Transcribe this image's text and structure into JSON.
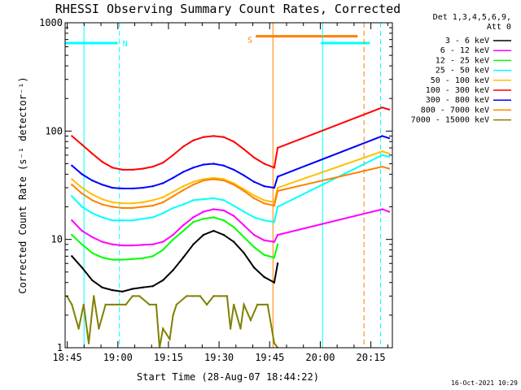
{
  "chart_data": {
    "type": "line",
    "title": "RHESSI Observing Summary Count Rates, Corrected",
    "xlabel": "Start Time (28-Aug-07 18:44:22)",
    "ylabel": "Corrected Count Rate (s⁻¹ detector⁻¹)",
    "x_units": "minutes after 18:44:22",
    "xlim": [
      0,
      97
    ],
    "ylim": [
      1,
      1000
    ],
    "yscale": "log",
    "grid": false,
    "legend_position": "right",
    "x_ticks": [
      {
        "label": "18:45",
        "value": 0.63
      },
      {
        "label": "19:00",
        "value": 15.63
      },
      {
        "label": "19:15",
        "value": 30.63
      },
      {
        "label": "19:30",
        "value": 45.63
      },
      {
        "label": "19:45",
        "value": 60.63
      },
      {
        "label": "20:00",
        "value": 75.63
      },
      {
        "label": "20:15",
        "value": 90.63
      }
    ],
    "y_ticks": [
      {
        "label": "1",
        "value": 1
      },
      {
        "label": "10",
        "value": 10
      },
      {
        "label": "100",
        "value": 100
      },
      {
        "label": "1000",
        "value": 1000
      }
    ],
    "legend_header": [
      "Det 1,3,4,5,6,9,",
      "Att 0"
    ],
    "series": [
      {
        "name": "3 - 6 keV",
        "color": "#000000",
        "x": [
          2,
          5,
          8,
          11,
          14,
          17,
          20,
          23,
          26,
          29,
          32,
          35,
          38,
          41,
          44,
          47,
          50,
          53,
          56,
          59,
          62,
          63
        ],
        "values": [
          7,
          5.5,
          4.2,
          3.6,
          3.4,
          3.3,
          3.5,
          3.6,
          3.7,
          4.2,
          5.2,
          6.8,
          9,
          11,
          12,
          11,
          9.5,
          7.5,
          5.5,
          4.5,
          4.0,
          6
        ]
      },
      {
        "name": "6 - 12 keV",
        "color": "#ff00ff",
        "x": [
          2,
          5,
          8,
          11,
          14,
          17,
          20,
          23,
          26,
          29,
          32,
          35,
          38,
          41,
          44,
          47,
          50,
          53,
          56,
          59,
          62,
          63,
          94,
          96
        ],
        "values": [
          15,
          12,
          10.5,
          9.5,
          9,
          8.8,
          8.8,
          8.9,
          9,
          9.5,
          11,
          13.5,
          16,
          18,
          19,
          18.5,
          16.5,
          13.5,
          11,
          9.8,
          9.5,
          11,
          19,
          18
        ]
      },
      {
        "name": "12 - 25 keV",
        "color": "#00ff00",
        "x": [
          2,
          5,
          8,
          11,
          14,
          17,
          20,
          23,
          26,
          29,
          32,
          35,
          38,
          41,
          44,
          47,
          50,
          53,
          56,
          59,
          62,
          63
        ],
        "values": [
          11,
          9,
          7.5,
          6.8,
          6.5,
          6.5,
          6.6,
          6.7,
          7,
          8,
          10,
          12,
          14.5,
          15.5,
          16,
          15,
          13,
          10.5,
          8.5,
          7.2,
          6.8,
          9
        ]
      },
      {
        "name": "25 - 50 keV",
        "color": "#00ffff",
        "x": [
          2,
          5,
          8,
          11,
          14,
          17,
          20,
          23,
          26,
          29,
          32,
          35,
          38,
          41,
          44,
          47,
          50,
          53,
          56,
          59,
          62,
          63,
          94,
          96
        ],
        "values": [
          25,
          20,
          17.5,
          16,
          15,
          15,
          15,
          15.5,
          16,
          17.5,
          19.5,
          21,
          23,
          23.5,
          24,
          23,
          20.5,
          18,
          16,
          15,
          14.5,
          20,
          60,
          58
        ]
      },
      {
        "name": "50 - 100 keV",
        "color": "#ffbf00",
        "x": [
          2,
          5,
          8,
          11,
          14,
          17,
          20,
          23,
          26,
          29,
          32,
          35,
          38,
          41,
          44,
          47,
          50,
          53,
          56,
          59,
          62,
          63,
          94,
          96
        ],
        "values": [
          36,
          30,
          26,
          23.5,
          22,
          21.5,
          21.5,
          22,
          23,
          24.5,
          27.5,
          31,
          34,
          36,
          37,
          36,
          33,
          29,
          25.5,
          23,
          22,
          30,
          65,
          62
        ]
      },
      {
        "name": "100 - 300 keV",
        "color": "#ff0000",
        "x": [
          2,
          5,
          8,
          11,
          14,
          17,
          20,
          23,
          26,
          29,
          32,
          35,
          38,
          41,
          44,
          47,
          50,
          53,
          56,
          59,
          62,
          63,
          94,
          96
        ],
        "values": [
          90,
          75,
          62,
          52,
          46,
          44,
          44,
          45,
          47,
          51,
          60,
          72,
          82,
          88,
          90,
          88,
          80,
          68,
          57,
          50,
          46,
          70,
          165,
          158
        ]
      },
      {
        "name": "300 - 800 keV",
        "color": "#0000ff",
        "x": [
          2,
          5,
          8,
          11,
          14,
          17,
          20,
          23,
          26,
          29,
          32,
          35,
          38,
          41,
          44,
          47,
          50,
          53,
          56,
          59,
          62,
          63,
          94,
          96
        ],
        "values": [
          48,
          40,
          35,
          32,
          30,
          29.5,
          29.5,
          30,
          31,
          33,
          37,
          42,
          46,
          49,
          50,
          48,
          44,
          39,
          34,
          31,
          30,
          38,
          90,
          86
        ]
      },
      {
        "name": "800 - 7000 keV",
        "color": "#ff8000",
        "x": [
          2,
          5,
          8,
          11,
          14,
          17,
          20,
          23,
          26,
          29,
          32,
          35,
          38,
          41,
          44,
          47,
          50,
          53,
          56,
          59,
          62,
          63,
          94,
          96
        ],
        "values": [
          32,
          26.5,
          23,
          21,
          20,
          19.5,
          19.5,
          20,
          20.5,
          22,
          25,
          28.5,
          32,
          35,
          36,
          35,
          32,
          28,
          24,
          21.5,
          20.5,
          28,
          47,
          45
        ]
      },
      {
        "name": "7000 - 15000 keV",
        "color": "#808000",
        "x": [
          0.5,
          2,
          4,
          5.5,
          7,
          8.5,
          10,
          12,
          14,
          16,
          18,
          20,
          22,
          25,
          27,
          28,
          29,
          31,
          32,
          33,
          36,
          38,
          40,
          42,
          44,
          46,
          48,
          49,
          50,
          52,
          53,
          55,
          57,
          60,
          62,
          63
        ],
        "values": [
          3,
          2.5,
          1.5,
          2.5,
          1.1,
          3,
          1.5,
          2.5,
          2.5,
          2.5,
          2.5,
          3,
          3,
          2.5,
          2.5,
          1,
          1.5,
          1.2,
          2,
          2.5,
          3,
          3,
          3,
          2.5,
          3,
          3,
          3,
          1.5,
          2.5,
          1.5,
          2.5,
          1.8,
          2.5,
          2.5,
          1.1,
          1
        ]
      }
    ],
    "annotations": {
      "night_bar": {
        "label": "N",
        "color": "#00ffff",
        "x_start": 0,
        "x_end": 15.6,
        "y": 650
      },
      "saa_bar": {
        "label": "S",
        "color": "#ff8000",
        "x_start": 56.5,
        "x_end": 86.7,
        "y": 750
      },
      "night_bar_2": {
        "color": "#00ffff",
        "x_start": 75.8,
        "x_end": 90.3,
        "y": 650
      },
      "solid_lines": [
        {
          "color": "#00ffff",
          "x": 5.6
        },
        {
          "color": "#ff8000",
          "x": 61.6
        },
        {
          "color": "#00ffff",
          "x": 76.3
        }
      ],
      "dashed_lines": [
        {
          "color": "#00ffff",
          "x": 16.1
        },
        {
          "color": "#ff8000",
          "x": 88.6
        },
        {
          "color": "#00ffff",
          "x": 93.5
        }
      ]
    },
    "timestamp": "16-Oct-2021 10:29"
  }
}
